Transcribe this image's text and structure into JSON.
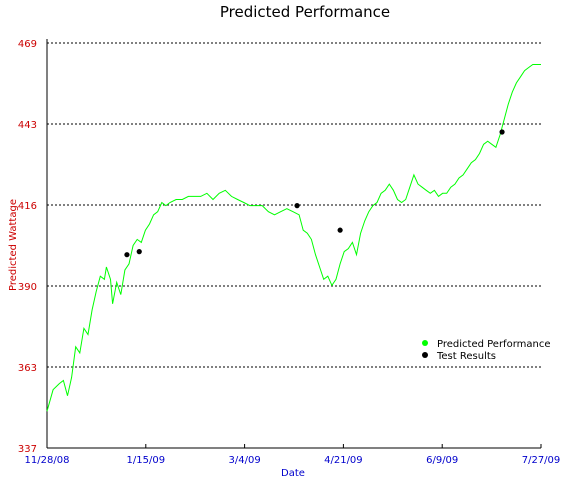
{
  "chart_data": {
    "type": "line",
    "title": "Predicted Performance",
    "xlabel": "Date",
    "ylabel": "Predicted Wattage",
    "x_ticks": [
      "11/28/08",
      "1/15/09",
      "3/4/09",
      "4/21/09",
      "6/9/09",
      "7/27/09"
    ],
    "y_ticks": [
      "469",
      "443",
      "416",
      "390",
      "363",
      "337"
    ],
    "xlim": [
      "2008-11-28",
      "2009-07-27"
    ],
    "ylim": [
      337,
      469
    ],
    "grid": "horizontal dotted",
    "legend_position": "right",
    "series": [
      {
        "name": "Predicted Performance",
        "color": "#00ff00",
        "kind": "line",
        "points": [
          [
            "2008-11-28",
            349
          ],
          [
            "2008-12-01",
            356
          ],
          [
            "2008-12-04",
            358
          ],
          [
            "2008-12-06",
            359
          ],
          [
            "2008-12-08",
            354
          ],
          [
            "2008-12-10",
            360
          ],
          [
            "2008-12-12",
            370
          ],
          [
            "2008-12-14",
            368
          ],
          [
            "2008-12-16",
            376
          ],
          [
            "2008-12-18",
            374
          ],
          [
            "2008-12-20",
            382
          ],
          [
            "2008-12-22",
            388
          ],
          [
            "2008-12-24",
            393
          ],
          [
            "2008-12-26",
            392
          ],
          [
            "2008-12-27",
            396
          ],
          [
            "2008-12-29",
            392
          ],
          [
            "2008-12-30",
            384
          ],
          [
            "2009-01-01",
            391
          ],
          [
            "2009-01-03",
            387
          ],
          [
            "2009-01-05",
            395
          ],
          [
            "2009-01-07",
            397
          ],
          [
            "2009-01-09",
            403
          ],
          [
            "2009-01-11",
            405
          ],
          [
            "2009-01-13",
            404
          ],
          [
            "2009-01-15",
            408
          ],
          [
            "2009-01-17",
            410
          ],
          [
            "2009-01-19",
            413
          ],
          [
            "2009-01-21",
            414
          ],
          [
            "2009-01-23",
            417
          ],
          [
            "2009-01-25",
            416
          ],
          [
            "2009-01-27",
            417
          ],
          [
            "2009-01-30",
            418
          ],
          [
            "2009-02-02",
            418
          ],
          [
            "2009-02-05",
            419
          ],
          [
            "2009-02-08",
            419
          ],
          [
            "2009-02-11",
            419
          ],
          [
            "2009-02-14",
            420
          ],
          [
            "2009-02-17",
            418
          ],
          [
            "2009-02-20",
            420
          ],
          [
            "2009-02-23",
            421
          ],
          [
            "2009-02-26",
            419
          ],
          [
            "2009-03-01",
            418
          ],
          [
            "2009-03-04",
            417
          ],
          [
            "2009-03-07",
            416
          ],
          [
            "2009-03-10",
            416
          ],
          [
            "2009-03-13",
            416
          ],
          [
            "2009-03-16",
            414
          ],
          [
            "2009-03-19",
            413
          ],
          [
            "2009-03-22",
            414
          ],
          [
            "2009-03-25",
            415
          ],
          [
            "2009-03-28",
            414
          ],
          [
            "2009-03-31",
            413
          ],
          [
            "2009-04-02",
            408
          ],
          [
            "2009-04-04",
            407
          ],
          [
            "2009-04-06",
            405
          ],
          [
            "2009-04-08",
            400
          ],
          [
            "2009-04-10",
            396
          ],
          [
            "2009-04-12",
            392
          ],
          [
            "2009-04-14",
            393
          ],
          [
            "2009-04-16",
            390
          ],
          [
            "2009-04-18",
            392
          ],
          [
            "2009-04-20",
            397
          ],
          [
            "2009-04-22",
            401
          ],
          [
            "2009-04-24",
            402
          ],
          [
            "2009-04-26",
            404
          ],
          [
            "2009-04-28",
            400
          ],
          [
            "2009-04-30",
            407
          ],
          [
            "2009-05-02",
            411
          ],
          [
            "2009-05-04",
            414
          ],
          [
            "2009-05-06",
            416
          ],
          [
            "2009-05-08",
            417
          ],
          [
            "2009-05-10",
            420
          ],
          [
            "2009-05-12",
            421
          ],
          [
            "2009-05-14",
            423
          ],
          [
            "2009-05-16",
            421
          ],
          [
            "2009-05-18",
            418
          ],
          [
            "2009-05-20",
            417
          ],
          [
            "2009-05-22",
            418
          ],
          [
            "2009-05-24",
            422
          ],
          [
            "2009-05-26",
            426
          ],
          [
            "2009-05-28",
            423
          ],
          [
            "2009-05-30",
            422
          ],
          [
            "2009-06-01",
            421
          ],
          [
            "2009-06-03",
            420
          ],
          [
            "2009-06-05",
            421
          ],
          [
            "2009-06-07",
            419
          ],
          [
            "2009-06-09",
            420
          ],
          [
            "2009-06-11",
            420
          ],
          [
            "2009-06-13",
            422
          ],
          [
            "2009-06-15",
            423
          ],
          [
            "2009-06-17",
            425
          ],
          [
            "2009-06-19",
            426
          ],
          [
            "2009-06-21",
            428
          ],
          [
            "2009-06-23",
            430
          ],
          [
            "2009-06-25",
            431
          ],
          [
            "2009-06-27",
            433
          ],
          [
            "2009-06-29",
            436
          ],
          [
            "2009-07-01",
            437
          ],
          [
            "2009-07-03",
            436
          ],
          [
            "2009-07-05",
            435
          ],
          [
            "2009-07-07",
            439
          ],
          [
            "2009-07-09",
            444
          ],
          [
            "2009-07-11",
            449
          ],
          [
            "2009-07-13",
            453
          ],
          [
            "2009-07-15",
            456
          ],
          [
            "2009-07-17",
            458
          ],
          [
            "2009-07-19",
            460
          ],
          [
            "2009-07-21",
            461
          ],
          [
            "2009-07-23",
            462
          ],
          [
            "2009-07-25",
            462
          ],
          [
            "2009-07-27",
            462
          ]
        ]
      },
      {
        "name": "Test Results",
        "color": "#000000",
        "kind": "scatter",
        "points": [
          [
            "2009-01-06",
            400
          ],
          [
            "2009-01-12",
            401
          ],
          [
            "2009-03-30",
            416
          ],
          [
            "2009-04-20",
            408
          ],
          [
            "2009-07-08",
            440
          ]
        ]
      }
    ]
  }
}
